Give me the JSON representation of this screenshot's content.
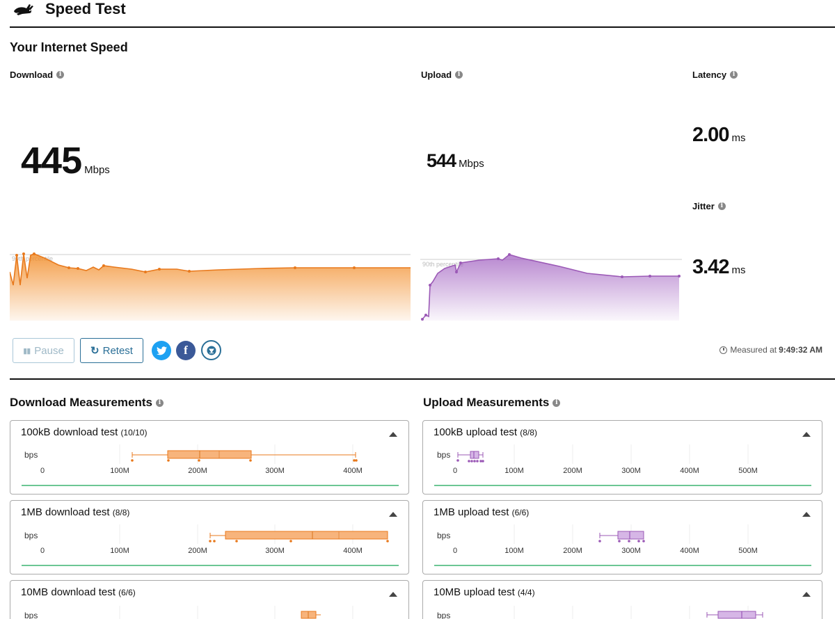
{
  "header": {
    "title": "Speed Test",
    "logo_icon": "rabbit-icon"
  },
  "summary": {
    "title": "Your Internet Speed",
    "download": {
      "label": "Download",
      "value": "445",
      "unit": "Mbps"
    },
    "upload": {
      "label": "Upload",
      "value": "544",
      "unit": "Mbps"
    },
    "latency": {
      "label": "Latency",
      "value": "2.00",
      "unit": "ms"
    },
    "jitter": {
      "label": "Jitter",
      "value": "3.42",
      "unit": "ms"
    },
    "percentile_label": "90th percentile"
  },
  "controls": {
    "pause_label": "Pause",
    "retest_label": "Retest",
    "measured_prefix": "Measured at",
    "measured_time": "9:49:32 AM"
  },
  "colors": {
    "download": "#f28e2b",
    "upload": "#a05fc0",
    "baseline": "#3cb371",
    "accent": "#2a6f97"
  },
  "download_measurements": {
    "title": "Download Measurements",
    "axis_unit": "bps",
    "ticks": [
      "0",
      "100M",
      "200M",
      "300M",
      "400M"
    ],
    "tests": [
      {
        "name": "100kB download test",
        "count": "(10/10)"
      },
      {
        "name": "1MB download test",
        "count": "(8/8)"
      },
      {
        "name": "10MB download test",
        "count": "(6/6)"
      }
    ]
  },
  "upload_measurements": {
    "title": "Upload Measurements",
    "axis_unit": "bps",
    "ticks": [
      "0",
      "100M",
      "200M",
      "300M",
      "400M",
      "500M"
    ],
    "tests": [
      {
        "name": "100kB upload test",
        "count": "(8/8)"
      },
      {
        "name": "1MB upload test",
        "count": "(6/6)"
      },
      {
        "name": "10MB upload test",
        "count": "(4/4)"
      }
    ]
  }
}
